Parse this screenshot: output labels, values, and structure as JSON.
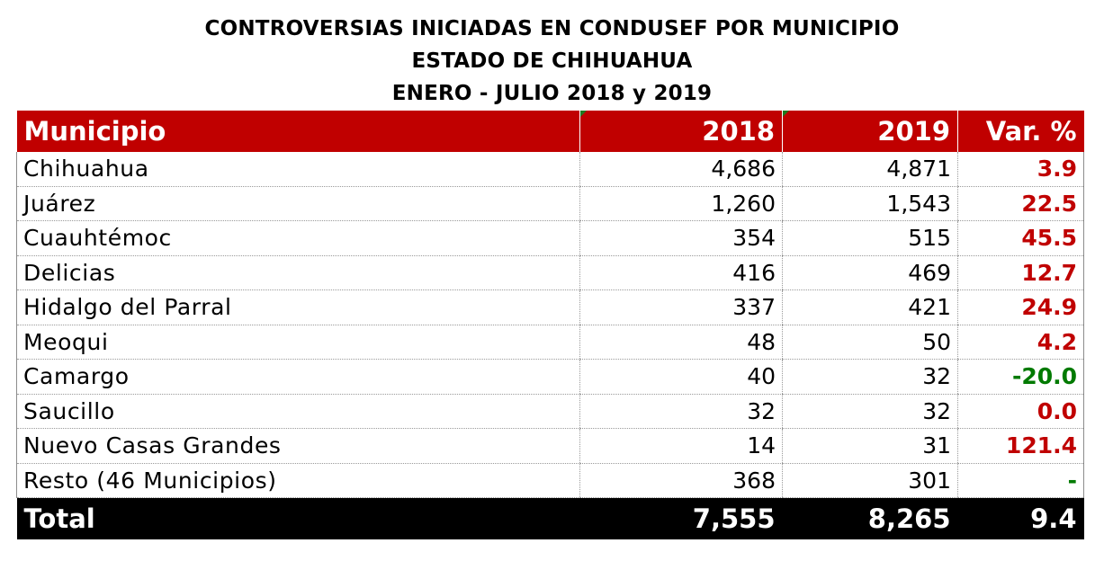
{
  "title": {
    "line1": "CONTROVERSIAS INICIADAS EN CONDUSEF POR MUNICIPIO",
    "line2": "ESTADO DE CHIHUAHUA",
    "line3": "ENERO - JULIO 2018 y 2019"
  },
  "table": {
    "headers": [
      "Municipio",
      "2018",
      "2019",
      "Var. %"
    ],
    "rows": [
      {
        "municipio": "Chihuahua",
        "y2018": "4,686",
        "y2019": "4,871",
        "var": "3.9",
        "var_color": "#c00000"
      },
      {
        "municipio": "Juárez",
        "y2018": "1,260",
        "y2019": "1,543",
        "var": "22.5",
        "var_color": "#c00000"
      },
      {
        "municipio": "Cuauhtémoc",
        "y2018": "354",
        "y2019": "515",
        "var": "45.5",
        "var_color": "#c00000"
      },
      {
        "municipio": "Delicias",
        "y2018": "416",
        "y2019": "469",
        "var": "12.7",
        "var_color": "#c00000"
      },
      {
        "municipio": "Hidalgo del Parral",
        "y2018": "337",
        "y2019": "421",
        "var": "24.9",
        "var_color": "#c00000"
      },
      {
        "municipio": "Meoqui",
        "y2018": "48",
        "y2019": "50",
        "var": "4.2",
        "var_color": "#c00000"
      },
      {
        "municipio": "Camargo",
        "y2018": "40",
        "y2019": "32",
        "var": "-20.0",
        "var_color": "#007a00"
      },
      {
        "municipio": "Saucillo",
        "y2018": "32",
        "y2019": "32",
        "var": "0.0",
        "var_color": "#c00000"
      },
      {
        "municipio": "Nuevo Casas Grandes",
        "y2018": "14",
        "y2019": "31",
        "var": "121.4",
        "var_color": "#c00000"
      },
      {
        "municipio": "Resto (46 Municipios)",
        "y2018": "368",
        "y2019": "301",
        "var": "-",
        "var_color": "#007a00"
      }
    ],
    "total": {
      "label": "Total",
      "y2018": "7,555",
      "y2019": "8,265",
      "var": "9.4"
    }
  },
  "colors": {
    "header_bg": "#c00000",
    "total_bg": "#000000",
    "positive": "#c00000",
    "negative": "#007a00"
  }
}
